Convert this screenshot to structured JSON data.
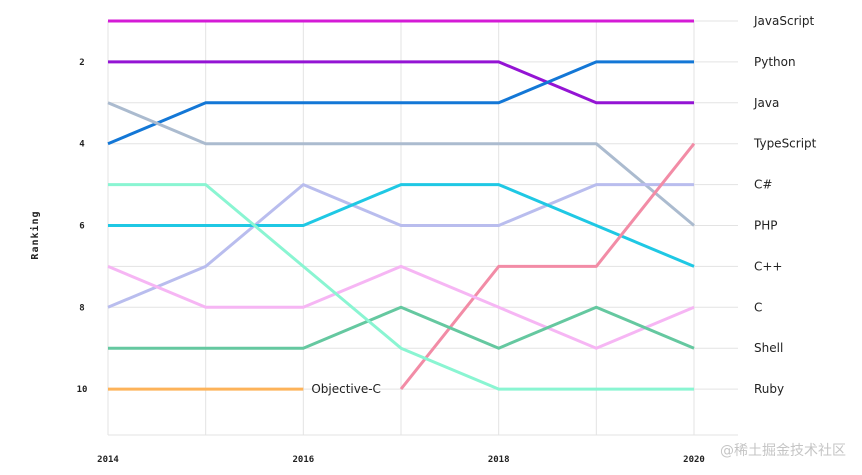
{
  "watermark": "@稀土掘金技术社区",
  "chart_data": {
    "type": "line",
    "chart_kind": "bump",
    "ylabel": "Ranking",
    "xlabel": "",
    "x": [
      2014,
      2015,
      2016,
      2017,
      2018,
      2019,
      2020
    ],
    "xticks": [
      2014,
      2016,
      2018,
      2020
    ],
    "yticks": [
      2,
      4,
      6,
      8,
      10
    ],
    "ylim": [
      11,
      1
    ],
    "y_inverted": true,
    "grid": true,
    "legend": "end-of-line labels (right)",
    "annotations": [
      {
        "text": "Objective-C",
        "x": 2016,
        "y": 10
      }
    ],
    "series": [
      {
        "name": "JavaScript",
        "color": "#d41bd6",
        "values": [
          1,
          1,
          1,
          1,
          1,
          1,
          1
        ]
      },
      {
        "name": "Python",
        "color": "#9414d4",
        "values": [
          2,
          2,
          2,
          2,
          2,
          3,
          3
        ],
        "label_value": 2
      },
      {
        "name": "Java",
        "color": "#1377d6",
        "values": [
          4,
          3,
          3,
          3,
          3,
          2,
          2
        ],
        "label_value": 3
      },
      {
        "name": "TypeScript",
        "color": "#abbbcf",
        "values": [
          3,
          4,
          4,
          4,
          4,
          4,
          6
        ],
        "label_value": 4
      },
      {
        "name": "C#",
        "color": "#b9bdee",
        "values": [
          8,
          7,
          5,
          6,
          6,
          5,
          5
        ]
      },
      {
        "name": "PHP",
        "color": "#1fc8e4",
        "values": [
          6,
          6,
          6,
          5,
          5,
          6,
          7
        ],
        "label_value": 6
      },
      {
        "name": "C++",
        "color": "#f28ca6",
        "values": [
          null,
          null,
          null,
          10,
          7,
          7,
          4
        ],
        "label_value": 7
      },
      {
        "name": "C",
        "color": "#f6b6f4",
        "values": [
          7,
          8,
          8,
          7,
          8,
          9,
          8
        ]
      },
      {
        "name": "Shell",
        "color": "#65c8a0",
        "values": [
          9,
          9,
          9,
          8,
          9,
          8,
          9
        ]
      },
      {
        "name": "Ruby",
        "color": "#8af5d2",
        "values": [
          5,
          5,
          7,
          9,
          10,
          10,
          10
        ],
        "label_value": 10
      },
      {
        "name": "Objective-C",
        "color": "#fdb35a",
        "values": [
          10,
          10,
          10,
          null,
          null,
          null,
          null
        ],
        "label_value": null
      }
    ]
  }
}
